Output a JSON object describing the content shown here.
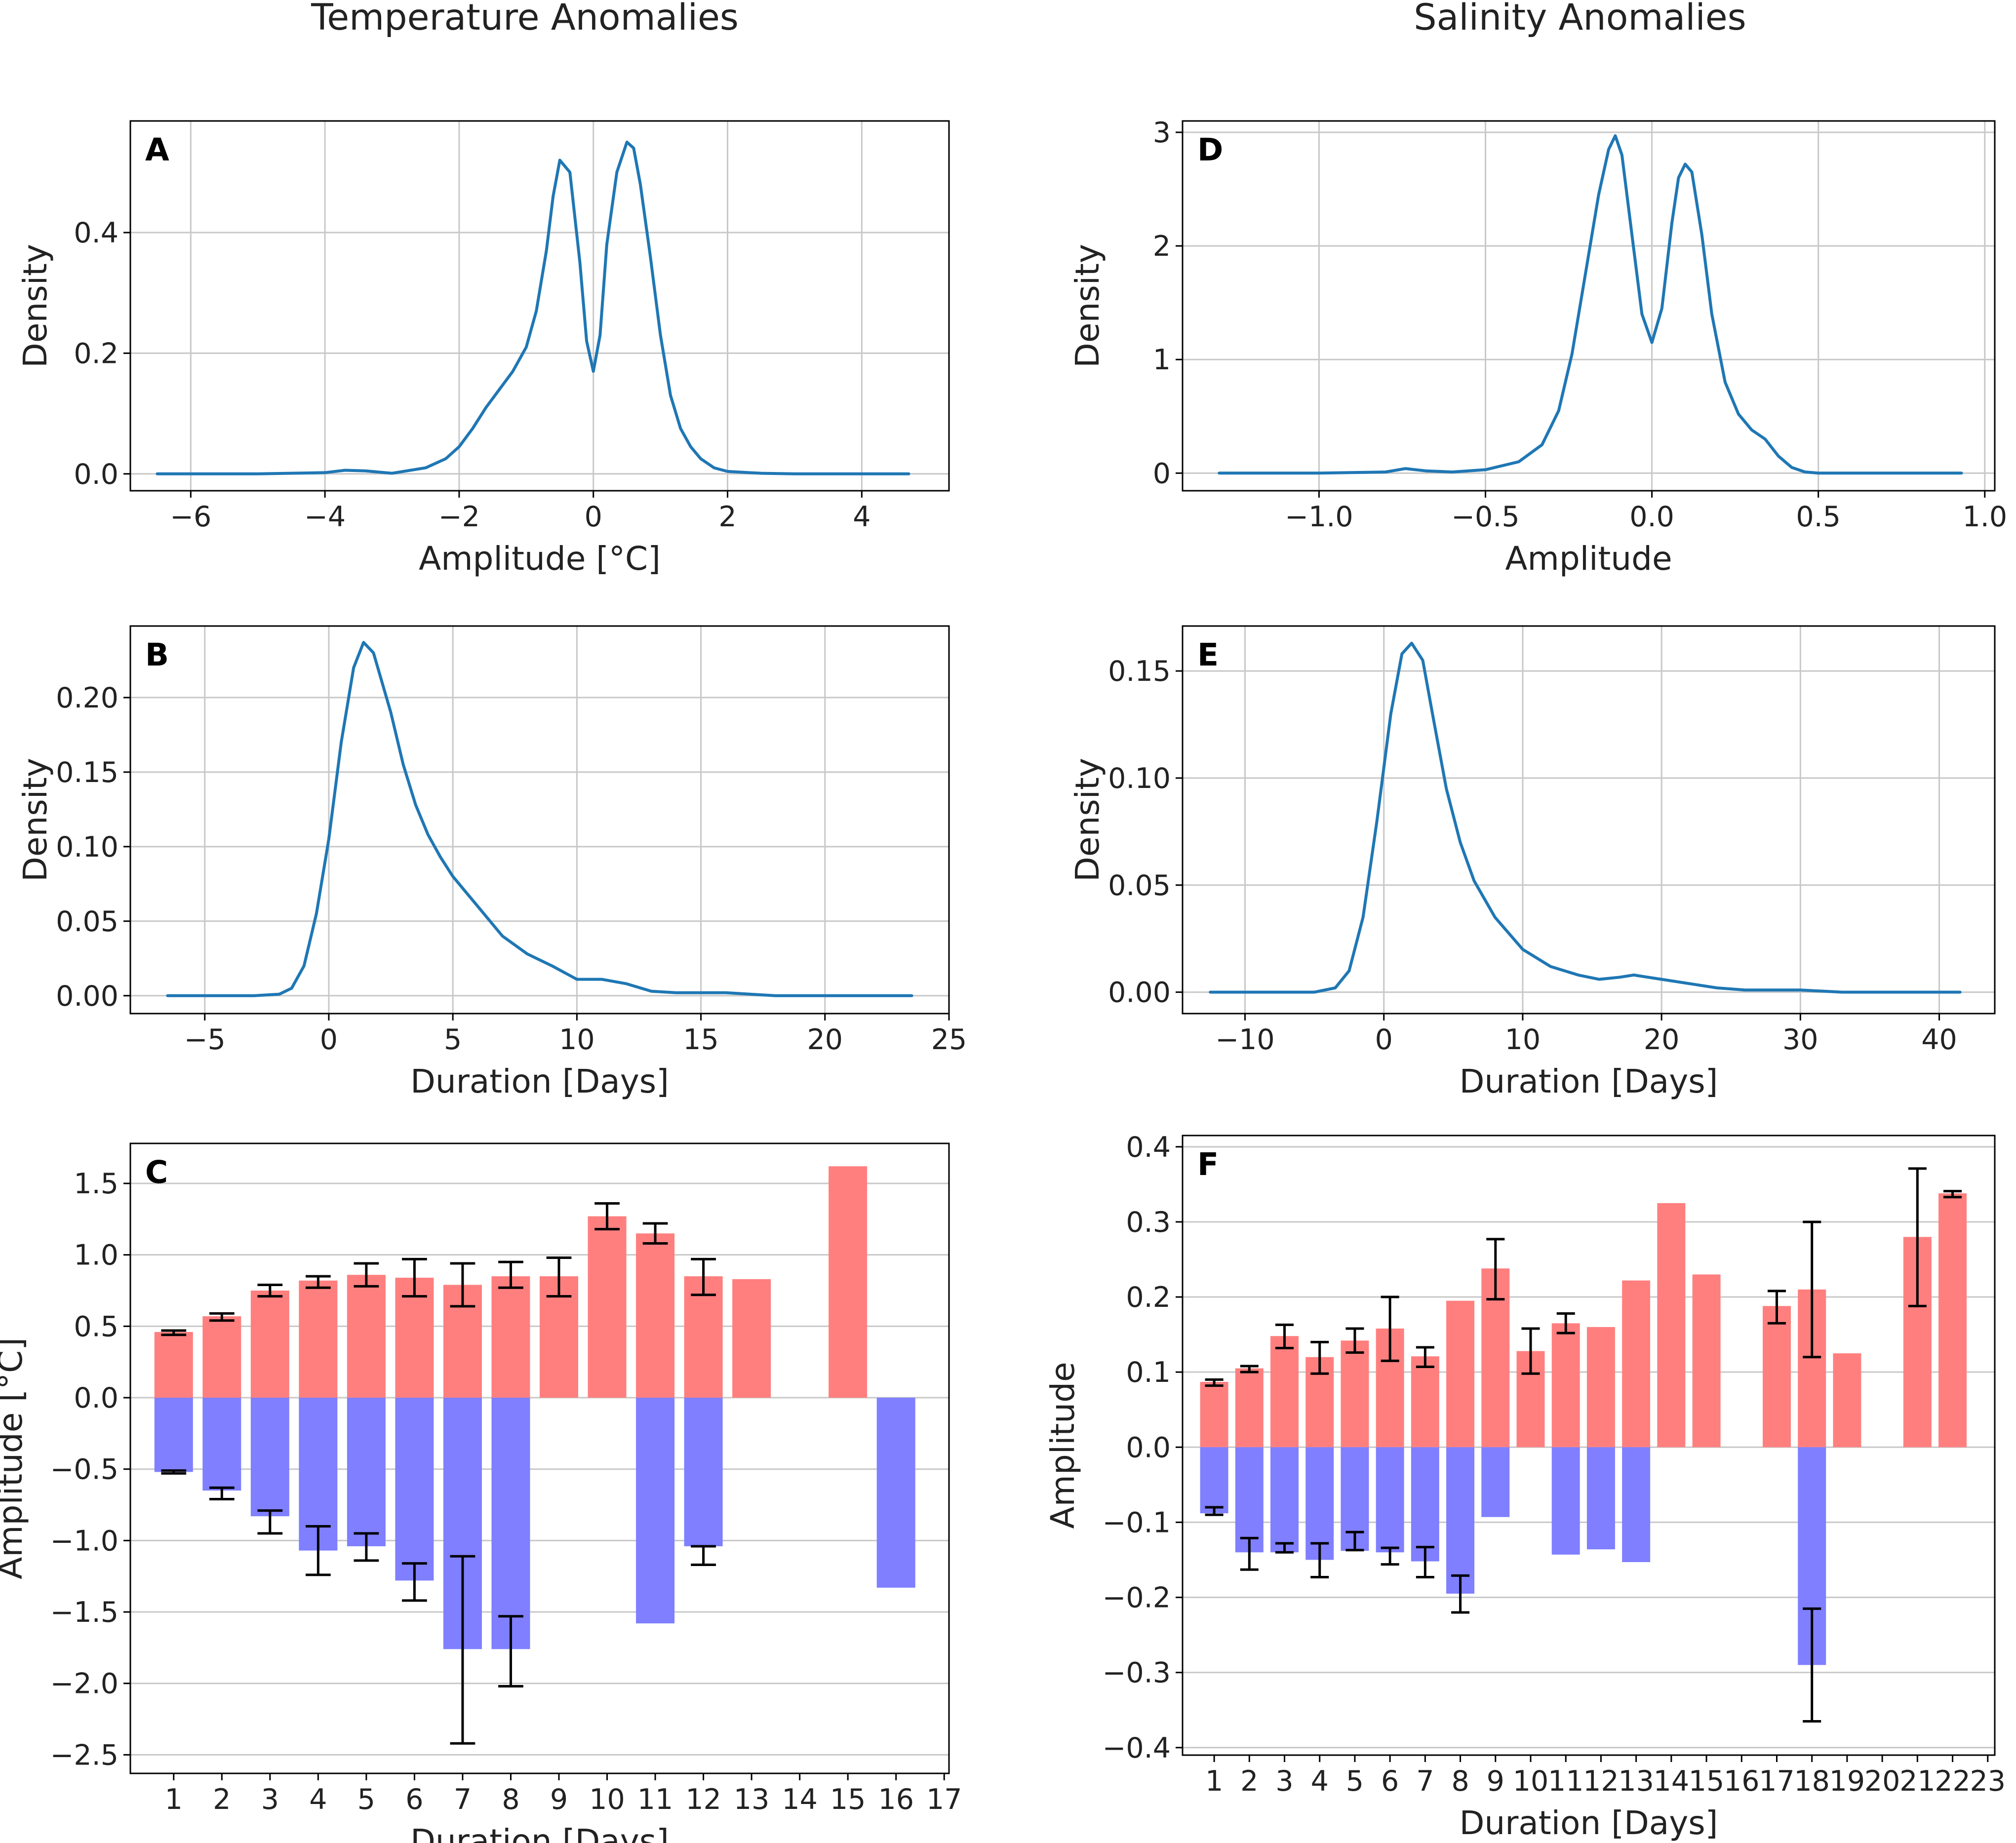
{
  "figure": {
    "col_titles": [
      "Temperature Anomalies",
      "Salinity Anomalies"
    ]
  },
  "chart_data": [
    {
      "id": "A",
      "type": "line",
      "label": "A",
      "xlabel": "Amplitude [°C]",
      "ylabel": "Density",
      "xlim": [
        -6.9,
        5.3
      ],
      "ylim": [
        -0.028,
        0.585
      ],
      "xticks": [
        -6,
        -4,
        -2,
        0,
        2,
        4
      ],
      "xticklabels": [
        "−6",
        "−4",
        "−2",
        "0",
        "2",
        "4"
      ],
      "yticks": [
        0,
        0.2,
        0.4
      ],
      "yticklabels": [
        "0.0",
        "0.2",
        "0.4"
      ],
      "color": "#1f77b4",
      "x": [
        -6.5,
        -5,
        -4,
        -3.7,
        -3.4,
        -3,
        -2.5,
        -2.2,
        -2,
        -1.8,
        -1.6,
        -1.4,
        -1.2,
        -1,
        -0.85,
        -0.7,
        -0.6,
        -0.5,
        -0.35,
        -0.2,
        -0.1,
        0,
        0.1,
        0.2,
        0.35,
        0.5,
        0.6,
        0.7,
        0.85,
        1,
        1.15,
        1.3,
        1.45,
        1.6,
        1.8,
        2,
        2.5,
        3,
        4,
        4.7
      ],
      "y": [
        0.0,
        0.0,
        0.002,
        0.006,
        0.005,
        0.001,
        0.01,
        0.025,
        0.045,
        0.075,
        0.11,
        0.14,
        0.17,
        0.21,
        0.27,
        0.37,
        0.46,
        0.52,
        0.5,
        0.35,
        0.22,
        0.17,
        0.23,
        0.38,
        0.5,
        0.55,
        0.54,
        0.48,
        0.36,
        0.23,
        0.13,
        0.075,
        0.045,
        0.025,
        0.01,
        0.004,
        0.001,
        0.0,
        0.0,
        0.0
      ]
    },
    {
      "id": "B",
      "type": "line",
      "label": "B",
      "xlabel": "Duration [Days]",
      "ylabel": "Density",
      "xlim": [
        -8,
        25
      ],
      "ylim": [
        -0.012,
        0.248
      ],
      "xticks": [
        -5,
        0,
        5,
        10,
        15,
        20,
        25
      ],
      "xticklabels": [
        "−5",
        "0",
        "5",
        "10",
        "15",
        "20",
        "25"
      ],
      "yticks": [
        0,
        0.05,
        0.1,
        0.15,
        0.2
      ],
      "yticklabels": [
        "0.00",
        "0.05",
        "0.10",
        "0.15",
        "0.20"
      ],
      "color": "#1f77b4",
      "x": [
        -6.5,
        -3,
        -2,
        -1.5,
        -1,
        -0.5,
        0,
        0.5,
        1,
        1.4,
        1.8,
        2.5,
        3,
        3.5,
        4,
        4.5,
        5,
        5.5,
        6,
        7,
        8,
        9,
        10,
        11,
        12,
        13,
        14,
        15,
        16,
        17,
        18,
        20,
        23.5
      ],
      "y": [
        0.0,
        0.0,
        0.001,
        0.005,
        0.02,
        0.055,
        0.105,
        0.17,
        0.22,
        0.237,
        0.23,
        0.19,
        0.155,
        0.128,
        0.108,
        0.093,
        0.08,
        0.07,
        0.06,
        0.04,
        0.028,
        0.02,
        0.011,
        0.011,
        0.008,
        0.003,
        0.002,
        0.002,
        0.002,
        0.001,
        0.0,
        0.0,
        0.0
      ]
    },
    {
      "id": "C",
      "type": "bar",
      "label": "C",
      "xlabel": "Duration [Days]",
      "ylabel": "Amplitude [°C]",
      "xlim": [
        0.1,
        17.1
      ],
      "ylim": [
        -2.63,
        1.78
      ],
      "xticks": [
        1,
        2,
        3,
        4,
        5,
        6,
        7,
        8,
        9,
        10,
        11,
        12,
        13,
        14,
        15,
        16,
        17
      ],
      "xticklabels": [
        "1",
        "2",
        "3",
        "4",
        "5",
        "6",
        "7",
        "8",
        "9",
        "10",
        "11",
        "12",
        "13",
        "14",
        "15",
        "16",
        "17"
      ],
      "yticks": [
        -2.5,
        -2.0,
        -1.5,
        -1.0,
        -0.5,
        0.0,
        0.5,
        1.0,
        1.5
      ],
      "yticklabels": [
        "−2.5",
        "−2.0",
        "−1.5",
        "−1.0",
        "−0.5",
        "0.0",
        "0.5",
        "1.0",
        "1.5"
      ],
      "categories": [
        1,
        2,
        3,
        4,
        5,
        6,
        7,
        8,
        9,
        10,
        11,
        12,
        13,
        14,
        15,
        16
      ],
      "positive_color": "#ff7f7f",
      "negative_color": "#7f7fff",
      "positive": [
        0.46,
        0.57,
        0.75,
        0.82,
        0.86,
        0.84,
        0.79,
        0.85,
        0.85,
        1.27,
        1.15,
        0.85,
        0.83,
        null,
        1.62,
        null
      ],
      "positive_err": [
        [
          0.44,
          0.47
        ],
        [
          0.54,
          0.59
        ],
        [
          0.71,
          0.79
        ],
        [
          0.77,
          0.85
        ],
        [
          0.78,
          0.94
        ],
        [
          0.71,
          0.97
        ],
        [
          0.64,
          0.94
        ],
        [
          0.77,
          0.95
        ],
        [
          0.71,
          0.98
        ],
        [
          1.18,
          1.36
        ],
        [
          1.08,
          1.22
        ],
        [
          0.72,
          0.97
        ],
        null,
        null,
        null,
        null
      ],
      "negative": [
        -0.52,
        -0.65,
        -0.83,
        -1.07,
        -1.04,
        -1.28,
        -1.76,
        -1.76,
        null,
        null,
        -1.58,
        -1.04,
        null,
        null,
        null,
        -1.33
      ],
      "negative_err": [
        [
          -0.53,
          -0.51
        ],
        [
          -0.71,
          -0.63
        ],
        [
          -0.95,
          -0.79
        ],
        [
          -1.24,
          -0.9
        ],
        [
          -1.14,
          -0.95
        ],
        [
          -1.42,
          -1.16
        ],
        [
          -2.42,
          -1.11
        ],
        [
          -2.02,
          -1.53
        ],
        null,
        null,
        null,
        [
          -1.17,
          -1.04
        ],
        null,
        null,
        null,
        null
      ]
    },
    {
      "id": "D",
      "type": "line",
      "label": "D",
      "xlabel": "Amplitude",
      "ylabel": "Density",
      "xlim": [
        -1.41,
        1.03
      ],
      "ylim": [
        -0.155,
        3.1
      ],
      "xticks": [
        -1.0,
        -0.5,
        0.0,
        0.5,
        1.0
      ],
      "xticklabels": [
        "−1.0",
        "−0.5",
        "0.0",
        "0.5",
        "1.0"
      ],
      "yticks": [
        0,
        1,
        2,
        3
      ],
      "yticklabels": [
        "0",
        "1",
        "2",
        "3"
      ],
      "color": "#1f77b4",
      "x": [
        -1.3,
        -1.0,
        -0.8,
        -0.74,
        -0.68,
        -0.6,
        -0.5,
        -0.4,
        -0.33,
        -0.28,
        -0.24,
        -0.2,
        -0.16,
        -0.13,
        -0.11,
        -0.09,
        -0.06,
        -0.03,
        0.0,
        0.03,
        0.06,
        0.08,
        0.1,
        0.12,
        0.15,
        0.18,
        0.22,
        0.26,
        0.3,
        0.34,
        0.38,
        0.42,
        0.46,
        0.5,
        0.6,
        0.93
      ],
      "y": [
        0.0,
        0.0,
        0.01,
        0.04,
        0.02,
        0.01,
        0.03,
        0.1,
        0.25,
        0.55,
        1.05,
        1.75,
        2.45,
        2.85,
        2.97,
        2.8,
        2.1,
        1.4,
        1.15,
        1.45,
        2.2,
        2.6,
        2.72,
        2.65,
        2.1,
        1.4,
        0.8,
        0.52,
        0.38,
        0.3,
        0.15,
        0.05,
        0.01,
        0.0,
        0.0,
        0.0
      ]
    },
    {
      "id": "E",
      "type": "line",
      "label": "E",
      "xlabel": "Duration [Days]",
      "ylabel": "Density",
      "xlim": [
        -14.5,
        44
      ],
      "ylim": [
        -0.01,
        0.171
      ],
      "xticks": [
        -10,
        0,
        10,
        20,
        30,
        40
      ],
      "xticklabels": [
        "−10",
        "0",
        "10",
        "20",
        "30",
        "40"
      ],
      "yticks": [
        0,
        0.05,
        0.1,
        0.15
      ],
      "yticklabels": [
        "0.00",
        "0.05",
        "0.10",
        "0.15"
      ],
      "color": "#1f77b4",
      "x": [
        -12.5,
        -5,
        -3.5,
        -2.5,
        -1.5,
        -0.5,
        0.5,
        1.3,
        2,
        2.8,
        3.5,
        4.5,
        5.5,
        6.5,
        8,
        10,
        12,
        14,
        15.5,
        17,
        18,
        19,
        20,
        22,
        24,
        26,
        28,
        30,
        33,
        36,
        41.5
      ],
      "y": [
        0.0,
        0.0,
        0.002,
        0.01,
        0.035,
        0.08,
        0.13,
        0.158,
        0.163,
        0.155,
        0.13,
        0.095,
        0.07,
        0.052,
        0.035,
        0.02,
        0.012,
        0.008,
        0.006,
        0.007,
        0.008,
        0.007,
        0.006,
        0.004,
        0.002,
        0.001,
        0.001,
        0.001,
        0.0,
        0.0,
        0.0
      ]
    },
    {
      "id": "F",
      "type": "bar",
      "label": "F",
      "xlabel": "Duration [Days]",
      "ylabel": "Amplitude",
      "xlim": [
        0.1,
        23.2
      ],
      "ylim": [
        -0.41,
        0.415
      ],
      "xticks": [
        1,
        2,
        3,
        4,
        5,
        6,
        7,
        8,
        9,
        10,
        11,
        12,
        13,
        14,
        15,
        16,
        17,
        18,
        19,
        20,
        21,
        22,
        23
      ],
      "xticklabels": [
        "1",
        "2",
        "3",
        "4",
        "5",
        "6",
        "7",
        "8",
        "9",
        "10",
        "11",
        "12",
        "13",
        "14",
        "15",
        "16",
        "17",
        "18",
        "19",
        "20",
        "21",
        "22",
        "23"
      ],
      "yticks": [
        -0.4,
        -0.3,
        -0.2,
        -0.1,
        0.0,
        0.1,
        0.2,
        0.3,
        0.4
      ],
      "yticklabels": [
        "−0.4",
        "−0.3",
        "−0.2",
        "−0.1",
        "0.0",
        "0.1",
        "0.2",
        "0.3",
        "0.4"
      ],
      "categories": [
        1,
        2,
        3,
        4,
        5,
        6,
        7,
        8,
        9,
        10,
        11,
        12,
        13,
        14,
        15,
        16,
        17,
        18,
        19,
        20,
        21,
        22
      ],
      "positive_color": "#ff7f7f",
      "negative_color": "#7f7fff",
      "positive": [
        0.087,
        0.105,
        0.148,
        0.12,
        0.142,
        0.158,
        0.121,
        0.195,
        0.238,
        0.128,
        0.165,
        0.16,
        0.222,
        0.325,
        0.23,
        null,
        0.188,
        0.21,
        0.125,
        null,
        0.28,
        0.338
      ],
      "positive_err": [
        [
          0.082,
          0.09
        ],
        [
          0.1,
          0.108
        ],
        [
          0.132,
          0.163
        ],
        [
          0.098,
          0.14
        ],
        [
          0.126,
          0.158
        ],
        [
          0.115,
          0.2
        ],
        [
          0.107,
          0.133
        ],
        null,
        [
          0.197,
          0.277
        ],
        [
          0.098,
          0.158
        ],
        [
          0.152,
          0.178
        ],
        null,
        null,
        null,
        null,
        null,
        [
          0.165,
          0.208
        ],
        [
          0.12,
          0.3
        ],
        null,
        null,
        [
          0.188,
          0.371
        ],
        [
          0.333,
          0.341
        ]
      ],
      "negative": [
        -0.088,
        -0.14,
        -0.14,
        -0.15,
        -0.138,
        -0.14,
        -0.152,
        -0.195,
        -0.093,
        null,
        -0.143,
        -0.136,
        -0.153,
        null,
        null,
        null,
        null,
        -0.29,
        null,
        null,
        null,
        null
      ],
      "negative_err": [
        [
          -0.09,
          -0.08
        ],
        [
          -0.163,
          -0.121
        ],
        [
          -0.14,
          -0.128
        ],
        [
          -0.173,
          -0.128
        ],
        [
          -0.137,
          -0.113
        ],
        [
          -0.156,
          -0.134
        ],
        [
          -0.173,
          -0.133
        ],
        [
          -0.22,
          -0.171
        ],
        null,
        null,
        null,
        null,
        null,
        null,
        null,
        null,
        null,
        [
          -0.365,
          -0.215
        ],
        null,
        null,
        null,
        null
      ]
    }
  ]
}
